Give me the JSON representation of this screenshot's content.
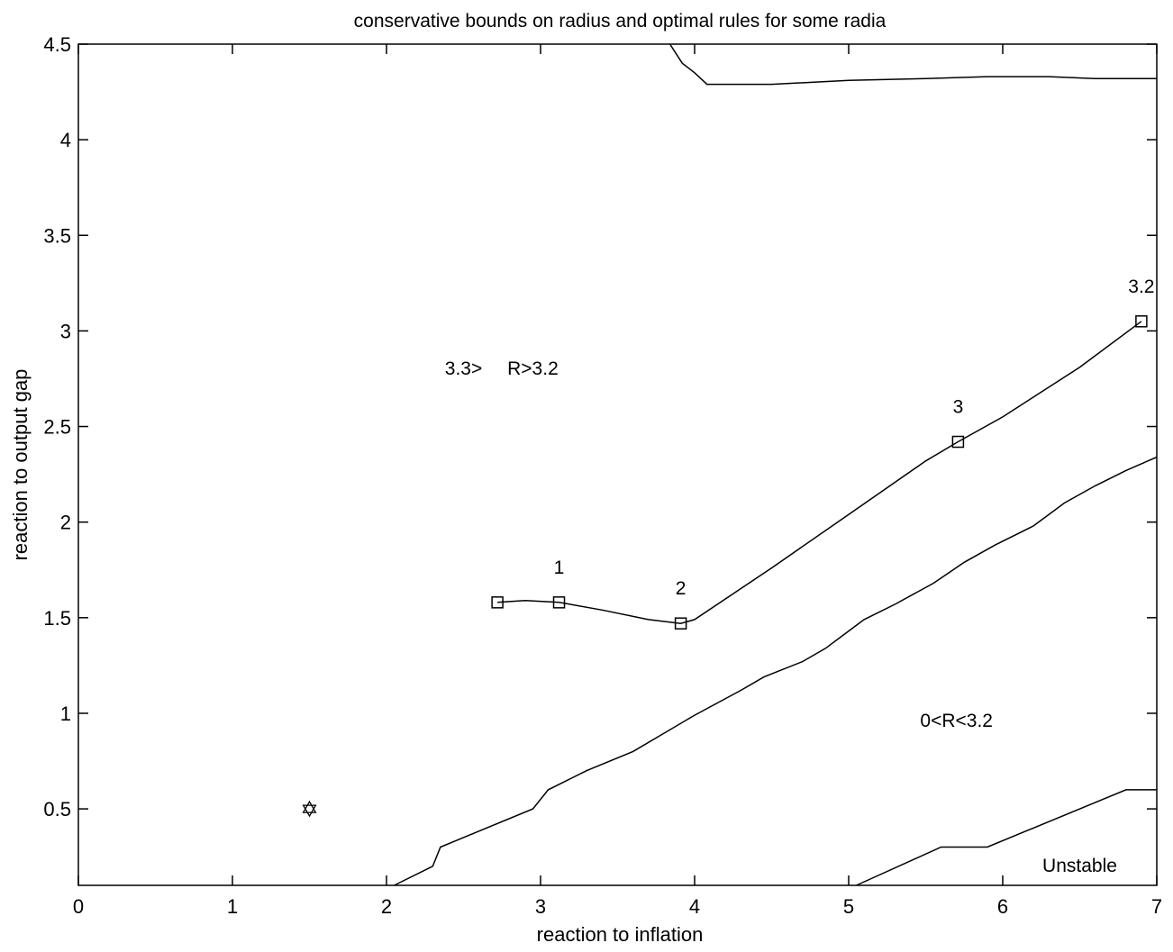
{
  "chart_data": {
    "type": "line",
    "title": "conservative bounds on radius and optimal rules for some radia",
    "xlabel": "reaction to inflation",
    "ylabel": "reaction to output gap",
    "xlim": [
      0,
      7
    ],
    "ylim": [
      0.1,
      4.5
    ],
    "xticks": [
      0,
      1,
      2,
      3,
      4,
      5,
      6,
      7
    ],
    "xtick_labels": [
      "0",
      "1",
      "2",
      "3",
      "4",
      "5",
      "6",
      "7"
    ],
    "yticks": [
      0.5,
      1,
      1.5,
      2,
      2.5,
      3,
      3.5,
      4,
      4.5
    ],
    "ytick_labels": [
      "0.5",
      "1",
      "1.5",
      "2",
      "2.5",
      "3",
      "3.5",
      "4",
      "4.5"
    ],
    "grid": false,
    "series": [
      {
        "x": [
          3.84,
          3.92,
          4.0,
          4.08,
          4.2,
          4.5,
          5.0,
          5.5,
          5.9,
          6.3,
          6.6,
          6.9,
          7.0
        ],
        "y": [
          4.5,
          4.4,
          4.35,
          4.29,
          4.29,
          4.29,
          4.31,
          4.32,
          4.33,
          4.33,
          4.32,
          4.32,
          4.32
        ]
      },
      {
        "x": [
          2.72,
          2.9,
          3.12,
          3.4,
          3.7,
          3.91,
          4.0,
          4.5,
          5.0,
          5.5,
          5.71,
          6.0,
          6.5,
          6.9
        ],
        "y": [
          1.58,
          1.59,
          1.58,
          1.54,
          1.49,
          1.47,
          1.49,
          1.76,
          2.04,
          2.32,
          2.42,
          2.55,
          2.81,
          3.05
        ],
        "markers": [
          {
            "x": 2.72,
            "y": 1.58,
            "label": ""
          },
          {
            "x": 3.12,
            "y": 1.58,
            "label": "1"
          },
          {
            "x": 3.91,
            "y": 1.47,
            "label": "2"
          },
          {
            "x": 5.71,
            "y": 2.42,
            "label": "3"
          },
          {
            "x": 6.9,
            "y": 3.05,
            "label": "3.2"
          }
        ]
      },
      {
        "x": [
          2.05,
          2.3,
          2.35,
          2.95,
          3.05,
          3.3,
          3.6,
          4.0,
          4.3,
          4.45,
          4.7,
          4.85,
          4.95,
          5.1,
          5.3,
          5.55,
          5.75,
          5.95,
          6.2,
          6.4,
          6.6,
          6.8,
          7.0
        ],
        "y": [
          0.1,
          0.2,
          0.3,
          0.5,
          0.6,
          0.7,
          0.8,
          0.99,
          1.12,
          1.19,
          1.27,
          1.34,
          1.4,
          1.49,
          1.57,
          1.68,
          1.79,
          1.88,
          1.98,
          2.1,
          2.19,
          2.27,
          2.34
        ]
      },
      {
        "x": [
          5.05,
          5.6,
          5.9,
          6.8,
          7.0
        ],
        "y": [
          0.1,
          0.3,
          0.3,
          0.6,
          0.6
        ]
      }
    ],
    "annotations": [
      {
        "text": "3.3>",
        "x": 2.5,
        "y": 2.77
      },
      {
        "text": "R>3.2",
        "x": 2.95,
        "y": 2.77
      },
      {
        "text": "0<R<3.2",
        "x": 5.7,
        "y": 0.93
      },
      {
        "text": "Unstable",
        "x": 6.5,
        "y": 0.17
      }
    ],
    "special_point": {
      "x": 1.5,
      "y": 0.5,
      "marker": "hexagram"
    }
  }
}
